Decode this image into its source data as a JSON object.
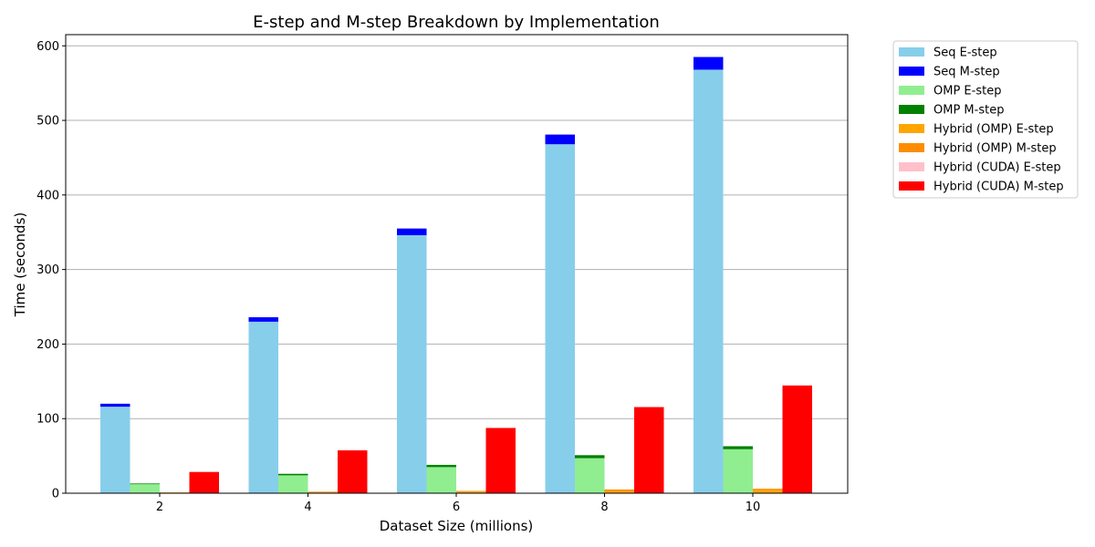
{
  "chart_data": {
    "type": "bar",
    "stacked_groups": true,
    "title": "E-step and M-step Breakdown by Implementation",
    "xlabel": "Dataset Size (millions)",
    "ylabel": "Time (seconds)",
    "categories": [
      "2",
      "4",
      "6",
      "8",
      "10"
    ],
    "ylim": [
      0,
      615
    ],
    "yticks": [
      0,
      100,
      200,
      300,
      400,
      500,
      600
    ],
    "grid": "y",
    "legend_position": "outside-right",
    "implementations": [
      {
        "name": "Seq",
        "e_step": [
          116,
          230,
          346,
          468,
          568
        ],
        "m_step": [
          4,
          6,
          9,
          13,
          17
        ],
        "e_color": "#87ceeb",
        "m_color": "#0000ff"
      },
      {
        "name": "OMP",
        "e_step": [
          12,
          24,
          35,
          47,
          59
        ],
        "m_step": [
          1,
          2,
          3,
          4,
          4
        ],
        "e_color": "#90ee90",
        "m_color": "#008000"
      },
      {
        "name": "Hybrid (OMP)",
        "e_step": [
          0.5,
          1,
          2,
          3,
          4
        ],
        "m_step": [
          0.5,
          1,
          1,
          2,
          2
        ],
        "e_color": "#ffa500",
        "m_color": "#ff8c00"
      },
      {
        "name": "Hybrid (CUDA)",
        "e_step": [
          0.5,
          0.5,
          0.5,
          0.5,
          0.5
        ],
        "m_step": [
          28,
          57,
          87,
          115,
          144
        ],
        "e_color": "#ffc0cb",
        "m_color": "#ff0000"
      }
    ],
    "legend": [
      {
        "label": "Seq E-step",
        "color": "#87ceeb"
      },
      {
        "label": "Seq M-step",
        "color": "#0000ff"
      },
      {
        "label": "OMP E-step",
        "color": "#90ee90"
      },
      {
        "label": "OMP M-step",
        "color": "#008000"
      },
      {
        "label": "Hybrid (OMP) E-step",
        "color": "#ffa500"
      },
      {
        "label": "Hybrid (OMP) M-step",
        "color": "#ff8c00"
      },
      {
        "label": "Hybrid (CUDA) E-step",
        "color": "#ffc0cb"
      },
      {
        "label": "Hybrid (CUDA) M-step",
        "color": "#ff0000"
      }
    ]
  }
}
